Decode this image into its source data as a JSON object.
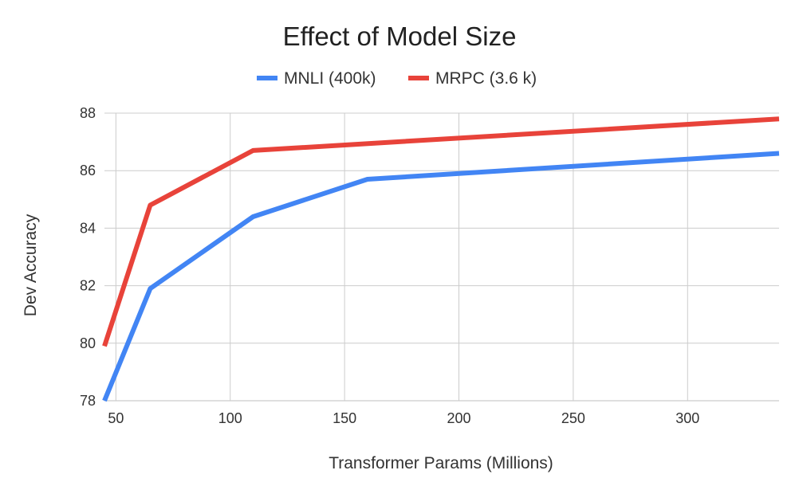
{
  "chart_data": {
    "type": "line",
    "title": "Effect of Model Size",
    "xlabel": "Transformer Params (Millions)",
    "ylabel": "Dev Accuracy",
    "xlim": [
      45,
      340
    ],
    "ylim": [
      78,
      88
    ],
    "xticks": [
      50,
      100,
      150,
      200,
      250,
      300
    ],
    "yticks": [
      78,
      80,
      82,
      84,
      86,
      88
    ],
    "grid": true,
    "legend_position": "top-center",
    "series": [
      {
        "name": "MNLI (400k)",
        "color": "#4285f4",
        "x": [
          45,
          65,
          110,
          160,
          340
        ],
        "y": [
          78.0,
          81.9,
          84.4,
          85.7,
          86.6
        ]
      },
      {
        "name": "MRPC (3.6 k)",
        "color": "#e8433a",
        "x": [
          45,
          65,
          110,
          340
        ],
        "y": [
          79.9,
          84.8,
          86.7,
          87.8
        ]
      }
    ]
  }
}
